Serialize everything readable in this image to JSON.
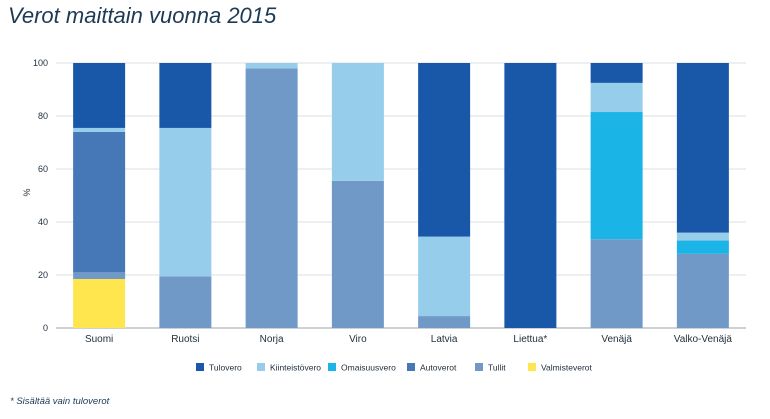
{
  "title": "Verot maittain vuonna 2015",
  "footnote": "* Sisältää vain tuloverot",
  "chart_data": {
    "type": "bar",
    "stacked": true,
    "ylabel": "%",
    "ylim": [
      0,
      100
    ],
    "yticks": [
      0,
      20,
      40,
      60,
      80,
      100
    ],
    "grid": true,
    "legend_position": "bottom",
    "categories": [
      "Suomi",
      "Ruotsi",
      "Norja",
      "Viro",
      "Latvia",
      "Liettua*",
      "Venäjä",
      "Valko-Venäjä"
    ],
    "series": [
      {
        "name": "Valmisteverot",
        "color": "#ffe64f",
        "values": [
          18.5,
          0,
          0,
          0,
          0,
          0,
          0,
          0
        ]
      },
      {
        "name": "Tullit",
        "color": "#7099c8",
        "values": [
          2.5,
          19.5,
          98,
          55.5,
          4.5,
          0,
          33.5,
          28
        ]
      },
      {
        "name": "Autoverot",
        "color": "#4677b6",
        "values": [
          53,
          0,
          0,
          0,
          0,
          0,
          0,
          0
        ]
      },
      {
        "name": "Omaisuusvero",
        "color": "#1bb4e6",
        "values": [
          0,
          0,
          0,
          0,
          0,
          0,
          48,
          5
        ]
      },
      {
        "name": "Kiinteistövero",
        "color": "#96cdea",
        "values": [
          1.5,
          56,
          2,
          44.5,
          30,
          0,
          11,
          3
        ]
      },
      {
        "name": "Tulovero",
        "color": "#1958a8",
        "values": [
          24.5,
          24.5,
          0,
          0,
          65.5,
          100,
          7.5,
          64
        ]
      }
    ],
    "legend_order": [
      "Tulovero",
      "Kiinteistövero",
      "Omaisuusvero",
      "Autoverot",
      "Tullit",
      "Valmisteverot"
    ]
  }
}
